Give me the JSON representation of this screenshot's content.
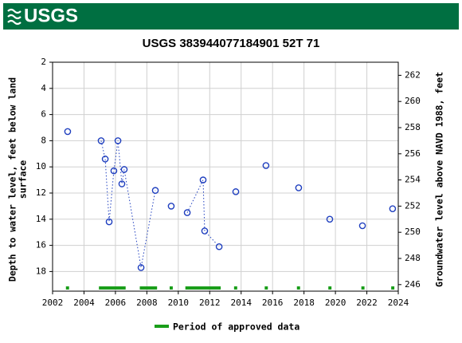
{
  "header": {
    "logo": "USGS"
  },
  "chart_data": {
    "type": "line",
    "title": "USGS 383944077184901 52T 71",
    "y_label": [
      "Depth to water level, feet below land",
      "surface"
    ],
    "y2_label": "Groundwater level above NAVD 1988, feet",
    "xlim": [
      2002,
      2024
    ],
    "xticks": [
      2002,
      2004,
      2006,
      2008,
      2010,
      2012,
      2014,
      2016,
      2018,
      2020,
      2022,
      2024
    ],
    "ylim": [
      19.5,
      2
    ],
    "y_inverted": true,
    "yticks": [
      2,
      4,
      6,
      8,
      10,
      12,
      14,
      16,
      18
    ],
    "y2lim": [
      245.5,
      263
    ],
    "y2ticks": [
      246,
      248,
      250,
      252,
      254,
      256,
      258,
      260,
      262
    ],
    "grid": true,
    "series": [
      {
        "name": "Depth to water level",
        "color": "#1f3fbf",
        "x": [
          2002.96,
          null,
          2005.09,
          2005.35,
          2005.6,
          2005.9,
          2006.16,
          2006.41,
          2006.56,
          2007.63,
          2008.54,
          null,
          2009.55,
          null,
          2010.57,
          2011.58,
          2011.68,
          2012.6,
          null,
          2013.66,
          null,
          2015.58,
          null,
          2017.66,
          null,
          2019.64,
          null,
          2021.72,
          null,
          2023.64
        ],
        "values": [
          7.3,
          null,
          8.0,
          9.4,
          14.2,
          10.3,
          8.0,
          11.3,
          10.2,
          17.7,
          11.8,
          null,
          13.0,
          null,
          13.5,
          11.0,
          14.9,
          16.1,
          null,
          11.9,
          null,
          9.9,
          null,
          11.6,
          null,
          14.0,
          null,
          14.5,
          null,
          13.2
        ]
      }
    ],
    "periods": {
      "name": "Period of approved data",
      "color": "#1a9e1a",
      "spans": [
        [
          2002.85,
          2003.05
        ],
        [
          2004.95,
          2006.65
        ],
        [
          2007.55,
          2008.65
        ],
        [
          2009.45,
          2009.65
        ],
        [
          2010.45,
          2012.7
        ],
        [
          2013.55,
          2013.75
        ],
        [
          2015.5,
          2015.7
        ],
        [
          2017.55,
          2017.75
        ],
        [
          2019.55,
          2019.75
        ],
        [
          2021.65,
          2021.85
        ],
        [
          2023.55,
          2023.75
        ]
      ]
    }
  }
}
